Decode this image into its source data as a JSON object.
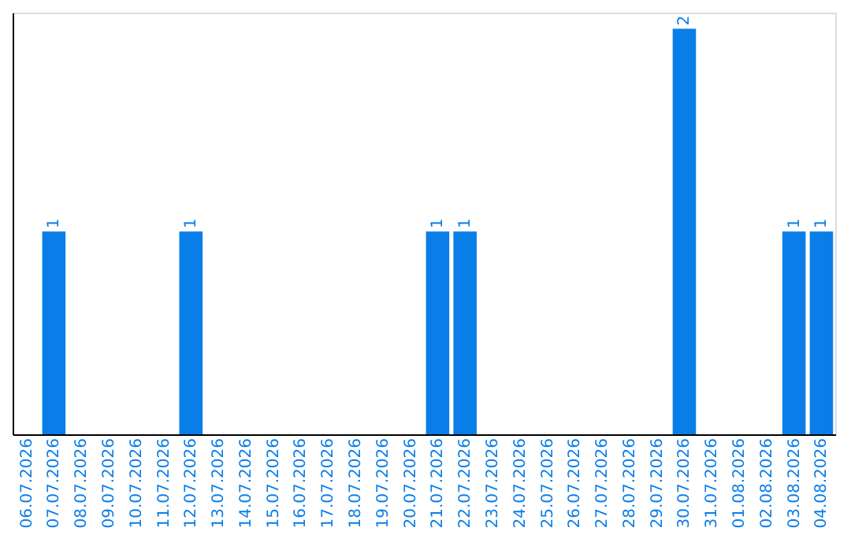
{
  "chart_data": {
    "type": "bar",
    "categories": [
      "06.07.2026",
      "07.07.2026",
      "08.07.2026",
      "09.07.2026",
      "10.07.2026",
      "11.07.2026",
      "12.07.2026",
      "13.07.2026",
      "14.07.2026",
      "15.07.2026",
      "16.07.2026",
      "17.07.2026",
      "18.07.2026",
      "19.07.2026",
      "20.07.2026",
      "21.07.2026",
      "22.07.2026",
      "23.07.2026",
      "24.07.2026",
      "25.07.2026",
      "26.07.2026",
      "27.07.2026",
      "28.07.2026",
      "29.07.2026",
      "30.07.2026",
      "31.07.2026",
      "01.08.2026",
      "02.08.2026",
      "03.08.2026",
      "04.08.2026"
    ],
    "values": [
      0,
      1,
      0,
      0,
      0,
      0,
      1,
      0,
      0,
      0,
      0,
      0,
      0,
      0,
      0,
      1,
      1,
      0,
      0,
      0,
      0,
      0,
      0,
      0,
      2,
      0,
      0,
      0,
      1,
      1
    ],
    "value_labels": [
      null,
      "1",
      null,
      null,
      null,
      null,
      "1",
      null,
      null,
      null,
      null,
      null,
      null,
      null,
      null,
      "1",
      "1",
      null,
      null,
      null,
      null,
      null,
      null,
      null,
      "2",
      null,
      null,
      null,
      "1",
      "1"
    ],
    "color": "#0a7ee8",
    "ylim": [
      0,
      2.08
    ],
    "tick_labels": "x",
    "grid": false
  }
}
